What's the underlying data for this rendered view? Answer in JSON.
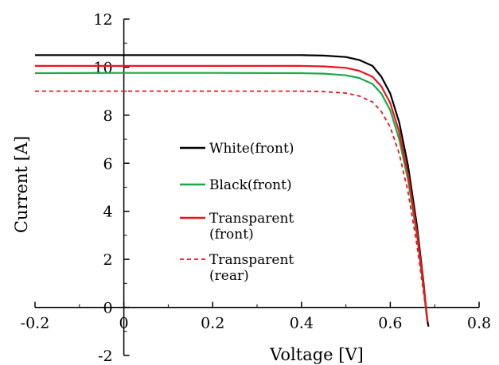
{
  "chart_data": {
    "type": "line",
    "title": "",
    "xlabel": "Voltage [V]",
    "ylabel": "Current [A]",
    "xlim": [
      -0.2,
      0.8
    ],
    "ylim": [
      -2,
      12
    ],
    "x_ticks": [
      "-0.2",
      "0",
      "0.2",
      "0.4",
      "0.6",
      "0.8"
    ],
    "y_ticks": [
      "12",
      "10",
      "8",
      "6",
      "4",
      "2",
      "0",
      "-2"
    ],
    "grid": false,
    "legend_position": "center",
    "series": [
      {
        "name": "White(front)",
        "color": "#000000",
        "dash": "solid",
        "points": [
          [
            -0.2,
            10.5
          ],
          [
            0.0,
            10.5
          ],
          [
            0.2,
            10.5
          ],
          [
            0.4,
            10.5
          ],
          [
            0.45,
            10.48
          ],
          [
            0.5,
            10.42
          ],
          [
            0.53,
            10.3
          ],
          [
            0.56,
            10.05
          ],
          [
            0.58,
            9.6
          ],
          [
            0.6,
            8.9
          ],
          [
            0.62,
            7.7
          ],
          [
            0.64,
            5.9
          ],
          [
            0.66,
            3.4
          ],
          [
            0.675,
            1.0
          ],
          [
            0.683,
            -0.5
          ],
          [
            0.686,
            -0.8
          ]
        ]
      },
      {
        "name": "Black(front)",
        "color": "#1aa84a",
        "dash": "solid",
        "points": [
          [
            -0.2,
            9.75
          ],
          [
            0.0,
            9.76
          ],
          [
            0.2,
            9.76
          ],
          [
            0.4,
            9.75
          ],
          [
            0.45,
            9.73
          ],
          [
            0.5,
            9.66
          ],
          [
            0.53,
            9.55
          ],
          [
            0.56,
            9.3
          ],
          [
            0.58,
            8.9
          ],
          [
            0.6,
            8.2
          ],
          [
            0.62,
            7.0
          ],
          [
            0.64,
            5.3
          ],
          [
            0.66,
            3.0
          ],
          [
            0.675,
            0.8
          ],
          [
            0.682,
            -0.4
          ]
        ]
      },
      {
        "name": "Transparent (front)",
        "color": "#e8161d",
        "dash": "solid",
        "points": [
          [
            -0.2,
            10.05
          ],
          [
            0.0,
            10.05
          ],
          [
            0.2,
            10.05
          ],
          [
            0.4,
            10.05
          ],
          [
            0.45,
            10.03
          ],
          [
            0.5,
            9.97
          ],
          [
            0.53,
            9.85
          ],
          [
            0.56,
            9.6
          ],
          [
            0.58,
            9.2
          ],
          [
            0.6,
            8.5
          ],
          [
            0.62,
            7.3
          ],
          [
            0.64,
            5.55
          ],
          [
            0.66,
            3.15
          ],
          [
            0.675,
            0.9
          ],
          [
            0.684,
            -0.6
          ]
        ]
      },
      {
        "name": "Transparent (rear)",
        "color": "#e8161d",
        "dash": "dashed",
        "points": [
          [
            -0.2,
            9.0
          ],
          [
            0.0,
            9.0
          ],
          [
            0.2,
            9.0
          ],
          [
            0.4,
            9.0
          ],
          [
            0.45,
            8.98
          ],
          [
            0.5,
            8.92
          ],
          [
            0.53,
            8.8
          ],
          [
            0.56,
            8.55
          ],
          [
            0.58,
            8.15
          ],
          [
            0.6,
            7.5
          ],
          [
            0.62,
            6.4
          ],
          [
            0.64,
            4.8
          ],
          [
            0.66,
            2.6
          ],
          [
            0.675,
            0.6
          ],
          [
            0.683,
            -0.5
          ]
        ]
      }
    ],
    "legend": [
      {
        "lines": [
          "White(front)"
        ],
        "color": "#000000",
        "dash": "solid"
      },
      {
        "lines": [
          "Black(front)"
        ],
        "color": "#1aa84a",
        "dash": "solid"
      },
      {
        "lines": [
          "Transparent",
          "(front)"
        ],
        "color": "#e8161d",
        "dash": "solid"
      },
      {
        "lines": [
          "Transparent",
          "(rear)"
        ],
        "color": "#e8161d",
        "dash": "dashed"
      }
    ]
  }
}
